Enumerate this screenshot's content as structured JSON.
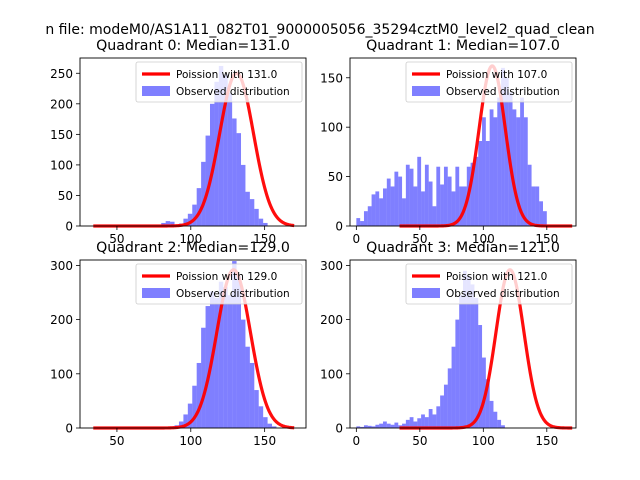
{
  "figure": {
    "suptitle": "n file: modeM0/AS1A11_082T01_9000005056_35294cztM0_level2_quad_clean"
  },
  "chart_data": [
    {
      "type": "histogram",
      "title": "Quadrant 0: Median=131.0",
      "xlim": [
        25,
        178
      ],
      "ylim": [
        0,
        275
      ],
      "xticks": [
        50,
        100,
        150
      ],
      "yticks": [
        0,
        50,
        100,
        150,
        200,
        250
      ],
      "median": 131.0,
      "poisson_scale": 250,
      "legend": [
        "Poission with 131.0",
        "Observed distribution"
      ],
      "bin_start": 80,
      "bin_width": 3,
      "counts": [
        5,
        8,
        7,
        2,
        4,
        12,
        20,
        35,
        62,
        105,
        148,
        200,
        236,
        262,
        248,
        218,
        176,
        152,
        100,
        56,
        44,
        28,
        12,
        5
      ]
    },
    {
      "type": "histogram",
      "title": "Quadrant 1: Median=107.0",
      "xlim": [
        -5,
        173
      ],
      "ylim": [
        0,
        170
      ],
      "xticks": [
        0,
        50,
        100,
        150
      ],
      "yticks": [
        0,
        50,
        100,
        150
      ],
      "median": 107.0,
      "poisson_scale": 162,
      "legend": [
        "Poission with 107.0",
        "Observed distribution"
      ],
      "bin_start": 0,
      "bin_width": 3,
      "counts": [
        8,
        5,
        15,
        20,
        32,
        35,
        28,
        38,
        48,
        40,
        55,
        50,
        28,
        62,
        58,
        40,
        70,
        35,
        62,
        45,
        20,
        60,
        42,
        60,
        50,
        35,
        60,
        40,
        40,
        60,
        64,
        70,
        86,
        110,
        86,
        118,
        110,
        130,
        160,
        150,
        135,
        118,
        110,
        130,
        110,
        62,
        40,
        40,
        25,
        15
      ]
    },
    {
      "type": "histogram",
      "title": "Quadrant 2: Median=129.0",
      "xlim": [
        25,
        178
      ],
      "ylim": [
        0,
        310
      ],
      "xticks": [
        50,
        100,
        150
      ],
      "yticks": [
        0,
        100,
        200,
        300
      ],
      "median": 129.0,
      "poisson_scale": 292,
      "legend": [
        "Poission with 129.0",
        "Observed distribution"
      ],
      "bin_start": 86,
      "bin_width": 3,
      "counts": [
        3,
        5,
        12,
        25,
        45,
        78,
        120,
        185,
        225,
        252,
        240,
        270,
        260,
        245,
        308,
        280,
        200,
        150,
        120,
        70,
        40,
        20,
        8,
        3
      ]
    },
    {
      "type": "histogram",
      "title": "Quadrant 3: Median=121.0",
      "xlim": [
        -5,
        173
      ],
      "ylim": [
        0,
        310
      ],
      "xticks": [
        0,
        50,
        100,
        150
      ],
      "yticks": [
        0,
        100,
        200,
        300
      ],
      "median": 121.0,
      "poisson_scale": 292,
      "legend": [
        "Poission with 121.0",
        "Observed distribution"
      ],
      "bin_start": 0,
      "bin_width": 3,
      "counts": [
        3,
        2,
        5,
        4,
        3,
        6,
        8,
        12,
        8,
        6,
        10,
        5,
        8,
        15,
        20,
        12,
        18,
        25,
        20,
        35,
        25,
        40,
        60,
        80,
        110,
        150,
        200,
        245,
        290,
        280,
        265,
        240,
        190,
        130,
        90,
        50,
        30,
        15,
        5
      ]
    }
  ]
}
